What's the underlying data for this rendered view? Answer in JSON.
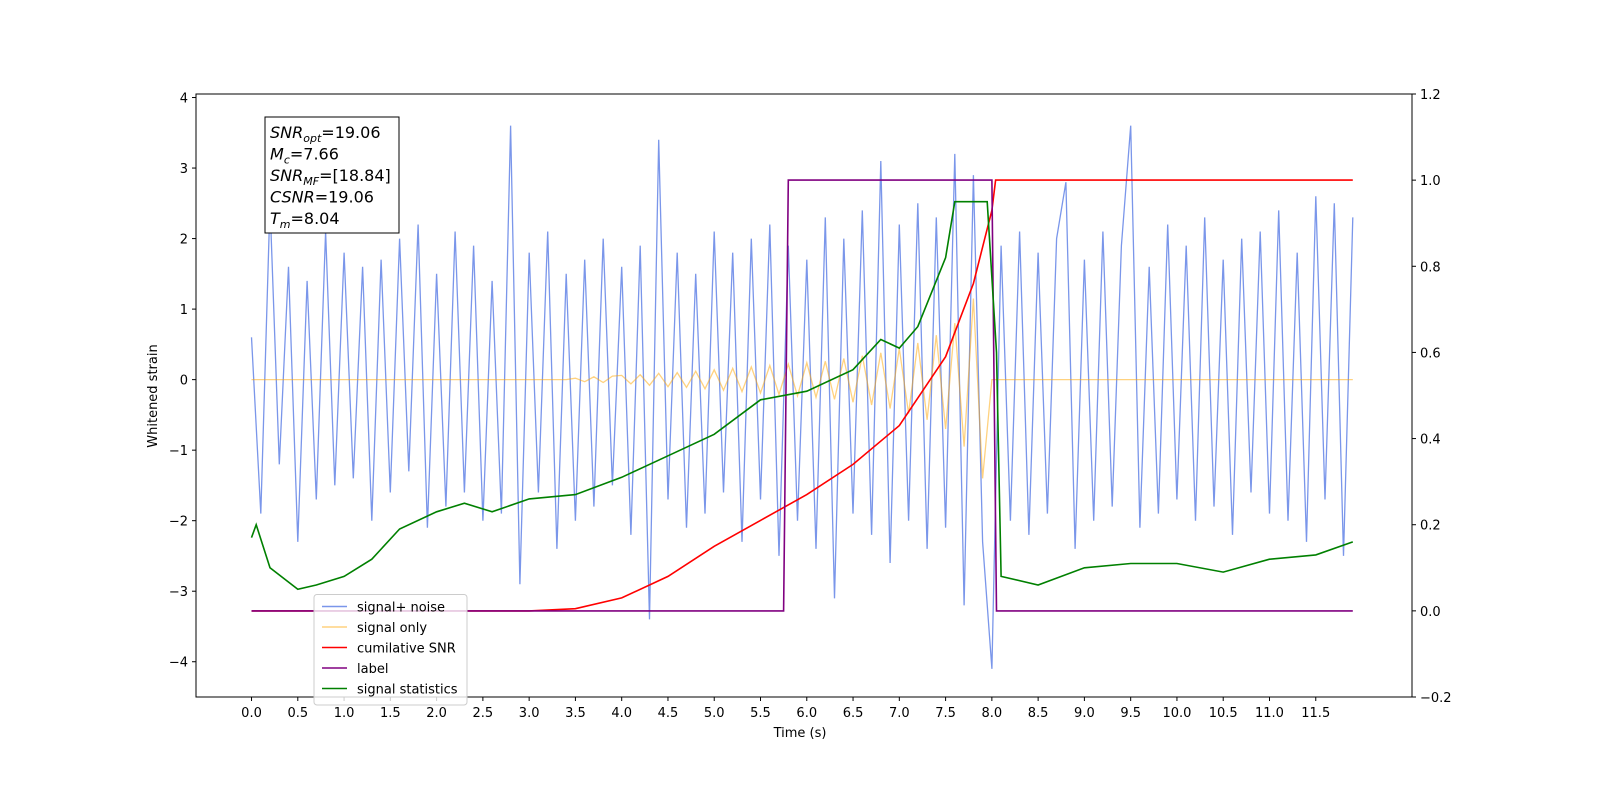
{
  "chart_data": {
    "type": "line",
    "ylabel": "Whitened strain",
    "xlabel": "Time (s)",
    "xlim": [
      -0.6,
      12.54
    ],
    "ylim": [
      -4.5,
      4.05
    ],
    "y2lim": [
      -0.2,
      1.2
    ],
    "xticks": [
      {
        "value": 0,
        "label": "0.0"
      },
      0.5,
      {
        "value": 1,
        "label": "1.0"
      },
      1.5,
      {
        "value": 2,
        "label": "2.0"
      },
      2.5,
      {
        "value": 3,
        "label": "3.0"
      },
      3.5,
      {
        "value": 4,
        "label": "4.0"
      },
      4.5,
      {
        "value": 5,
        "label": "5.0"
      },
      5.5,
      {
        "value": 6,
        "label": "6.0"
      },
      6.5,
      {
        "value": 7,
        "label": "7.0"
      },
      7.5,
      {
        "value": 8,
        "label": "8.0"
      },
      8.5,
      {
        "value": 9,
        "label": "9.0"
      },
      9.5,
      {
        "value": 10,
        "label": "10.0"
      },
      10.5,
      {
        "value": 11,
        "label": "11.0"
      },
      11.5
    ],
    "yticks": [
      {
        "value": -4,
        "label": "−4"
      },
      {
        "value": -3,
        "label": "−3"
      },
      {
        "value": -2,
        "label": "−2"
      },
      {
        "value": -1,
        "label": "−1"
      },
      0,
      1,
      2,
      3,
      4
    ],
    "y2ticks": [
      {
        "value": -0.2,
        "label": "−0.2"
      },
      {
        "value": 0,
        "label": "0.0"
      },
      0.2,
      0.4,
      0.6,
      0.8,
      {
        "value": 1,
        "label": "1.0"
      },
      1.2
    ],
    "x": [
      0,
      0.1,
      0.2,
      0.3,
      0.4,
      0.5,
      0.6,
      0.7,
      0.8,
      0.9,
      1,
      1.1,
      1.2,
      1.3,
      1.4,
      1.5,
      1.6,
      1.7,
      1.8,
      1.9,
      2,
      2.1,
      2.2,
      2.3,
      2.4,
      2.5,
      2.6,
      2.7,
      2.8,
      2.9,
      3,
      3.1,
      3.2,
      3.3,
      3.4,
      3.5,
      3.6,
      3.7,
      3.8,
      3.9,
      4,
      4.1,
      4.2,
      4.3,
      4.4,
      4.5,
      4.6,
      4.7,
      4.8,
      4.9,
      5,
      5.1,
      5.2,
      5.3,
      5.4,
      5.5,
      5.6,
      5.7,
      5.8,
      5.9,
      6,
      6.1,
      6.2,
      6.3,
      6.4,
      6.5,
      6.6,
      6.7,
      6.8,
      6.9,
      7,
      7.1,
      7.2,
      7.3,
      7.4,
      7.5,
      7.6,
      7.7,
      7.8,
      7.9,
      8,
      8.1,
      8.2,
      8.3,
      8.4,
      8.5,
      8.6,
      8.7,
      8.8,
      8.9,
      9,
      9.1,
      9.2,
      9.3,
      9.4,
      9.5,
      9.6,
      9.7,
      9.8,
      9.9,
      10,
      10.1,
      10.2,
      10.3,
      10.4,
      10.5,
      10.6,
      10.7,
      10.8,
      10.9,
      11,
      11.1,
      11.2,
      11.3,
      11.4,
      11.5,
      11.6,
      11.7,
      11.8,
      11.9
    ],
    "series": [
      {
        "name": "signal+ noise",
        "color": "#4169e1",
        "opacity": 0.7,
        "values": [
          0.6,
          -1.9,
          2.5,
          -1.2,
          1.6,
          -2.3,
          1.4,
          -1.7,
          2.1,
          -1.5,
          1.8,
          -1.4,
          1.6,
          -2.0,
          1.7,
          -1.6,
          2.0,
          -1.3,
          2.2,
          -2.1,
          1.5,
          -1.8,
          2.1,
          -1.6,
          1.9,
          -2.0,
          1.4,
          -1.9,
          3.6,
          -2.9,
          1.8,
          -1.6,
          2.1,
          -2.4,
          1.5,
          -2.0,
          1.7,
          -1.8,
          2.0,
          -1.5,
          1.6,
          -2.2,
          1.9,
          -3.4,
          3.4,
          -1.7,
          1.8,
          -2.1,
          1.5,
          -1.9,
          2.1,
          -1.6,
          1.8,
          -2.3,
          2.0,
          -1.7,
          2.2,
          -2.5,
          1.9,
          -2.0,
          1.7,
          -2.4,
          2.3,
          -3.1,
          2.0,
          -1.9,
          2.4,
          -2.2,
          3.1,
          -2.6,
          2.2,
          -2.0,
          2.5,
          -2.4,
          2.3,
          -2.1,
          3.2,
          -3.2,
          2.9,
          -2.3,
          -4.1,
          1.9,
          -2.0,
          2.1,
          -2.2,
          1.8,
          -1.9,
          2.0,
          2.8,
          -2.4,
          1.7,
          -2.0,
          2.1,
          -1.8,
          1.9,
          3.6,
          -2.1,
          1.6,
          -1.9,
          2.2,
          -1.7,
          1.9,
          -2.0,
          2.3,
          -1.8,
          1.7,
          -2.2,
          2.0,
          -1.6,
          2.1,
          -1.9,
          2.4,
          -2.0,
          1.8,
          -2.3,
          2.6,
          -1.7,
          2.5,
          -2.5,
          2.3
        ]
      },
      {
        "name": "signal only",
        "color": "#ffa500",
        "opacity": 0.5,
        "values": [
          0,
          0,
          0,
          0,
          0,
          0,
          0,
          0,
          0,
          0,
          0,
          0,
          0,
          0,
          0,
          0,
          0,
          0,
          0,
          0,
          0,
          0,
          0,
          0,
          0,
          0,
          0,
          0,
          0,
          0,
          0,
          0,
          0,
          0,
          0,
          0.02,
          -0.03,
          0.04,
          -0.04,
          0.05,
          0.06,
          -0.06,
          0.07,
          -0.08,
          0.09,
          -0.1,
          0.1,
          -0.11,
          0.12,
          -0.13,
          0.14,
          -0.15,
          0.16,
          -0.17,
          0.18,
          -0.19,
          0.2,
          -0.21,
          0.22,
          -0.23,
          0.24,
          -0.25,
          0.26,
          -0.28,
          0.3,
          -0.32,
          0.34,
          -0.36,
          0.38,
          -0.41,
          0.44,
          -0.48,
          0.52,
          -0.57,
          0.63,
          -0.7,
          0.8,
          -0.95,
          1.15,
          -1.4,
          0,
          0,
          0,
          0,
          0,
          0,
          0,
          0,
          0,
          0,
          0,
          0,
          0,
          0,
          0,
          0,
          0,
          0,
          0,
          0,
          0,
          0,
          0,
          0,
          0,
          0,
          0,
          0,
          0,
          0,
          0,
          0,
          0,
          0,
          0,
          0,
          0,
          0,
          0,
          0
        ]
      },
      {
        "name": "cumilative SNR",
        "color": "#ff0000",
        "axis": "y2",
        "x": [
          0,
          3,
          3.5,
          4,
          4.5,
          5,
          5.5,
          6,
          6.5,
          7,
          7.5,
          7.8,
          8,
          8.04,
          11.9
        ],
        "values": [
          0,
          0,
          0.005,
          0.03,
          0.08,
          0.15,
          0.21,
          0.27,
          0.34,
          0.43,
          0.59,
          0.76,
          0.93,
          1,
          1
        ]
      },
      {
        "name": "label",
        "color": "#800080",
        "axis": "y2",
        "x": [
          0,
          5.75,
          5.8,
          8.0,
          8.05,
          11.9
        ],
        "values": [
          0,
          0,
          1,
          1,
          0,
          0
        ]
      },
      {
        "name": "signal statistics",
        "color": "#008000",
        "axis": "y2",
        "x": [
          0,
          0.05,
          0.2,
          0.5,
          0.7,
          1,
          1.3,
          1.6,
          2,
          2.3,
          2.6,
          3,
          3.5,
          4,
          4.5,
          5,
          5.5,
          6,
          6.5,
          6.8,
          7,
          7.2,
          7.5,
          7.6,
          7.8,
          7.95,
          8.05,
          8.1,
          8.5,
          9,
          9.5,
          10,
          10.5,
          11,
          11.5,
          11.9
        ],
        "values": [
          0.17,
          0.2,
          0.1,
          0.05,
          0.06,
          0.08,
          0.12,
          0.19,
          0.23,
          0.25,
          0.23,
          0.26,
          0.27,
          0.31,
          0.36,
          0.41,
          0.49,
          0.51,
          0.56,
          0.63,
          0.61,
          0.66,
          0.82,
          0.95,
          0.95,
          0.95,
          0.6,
          0.08,
          0.06,
          0.1,
          0.11,
          0.11,
          0.09,
          0.12,
          0.13,
          0.16
        ]
      }
    ],
    "annotations": [
      {
        "main": "SNR",
        "sub": "opt",
        "rest": "=19.06"
      },
      {
        "main": "M",
        "sub": "c",
        "rest": "=7.66"
      },
      {
        "main": "SNR",
        "sub": "MF",
        "rest": "=[18.84]"
      },
      {
        "main": "CSNR",
        "rest": "=19.06"
      },
      {
        "main": "T",
        "sub": "m",
        "rest": "=8.04"
      }
    ],
    "legend": "lower left"
  }
}
